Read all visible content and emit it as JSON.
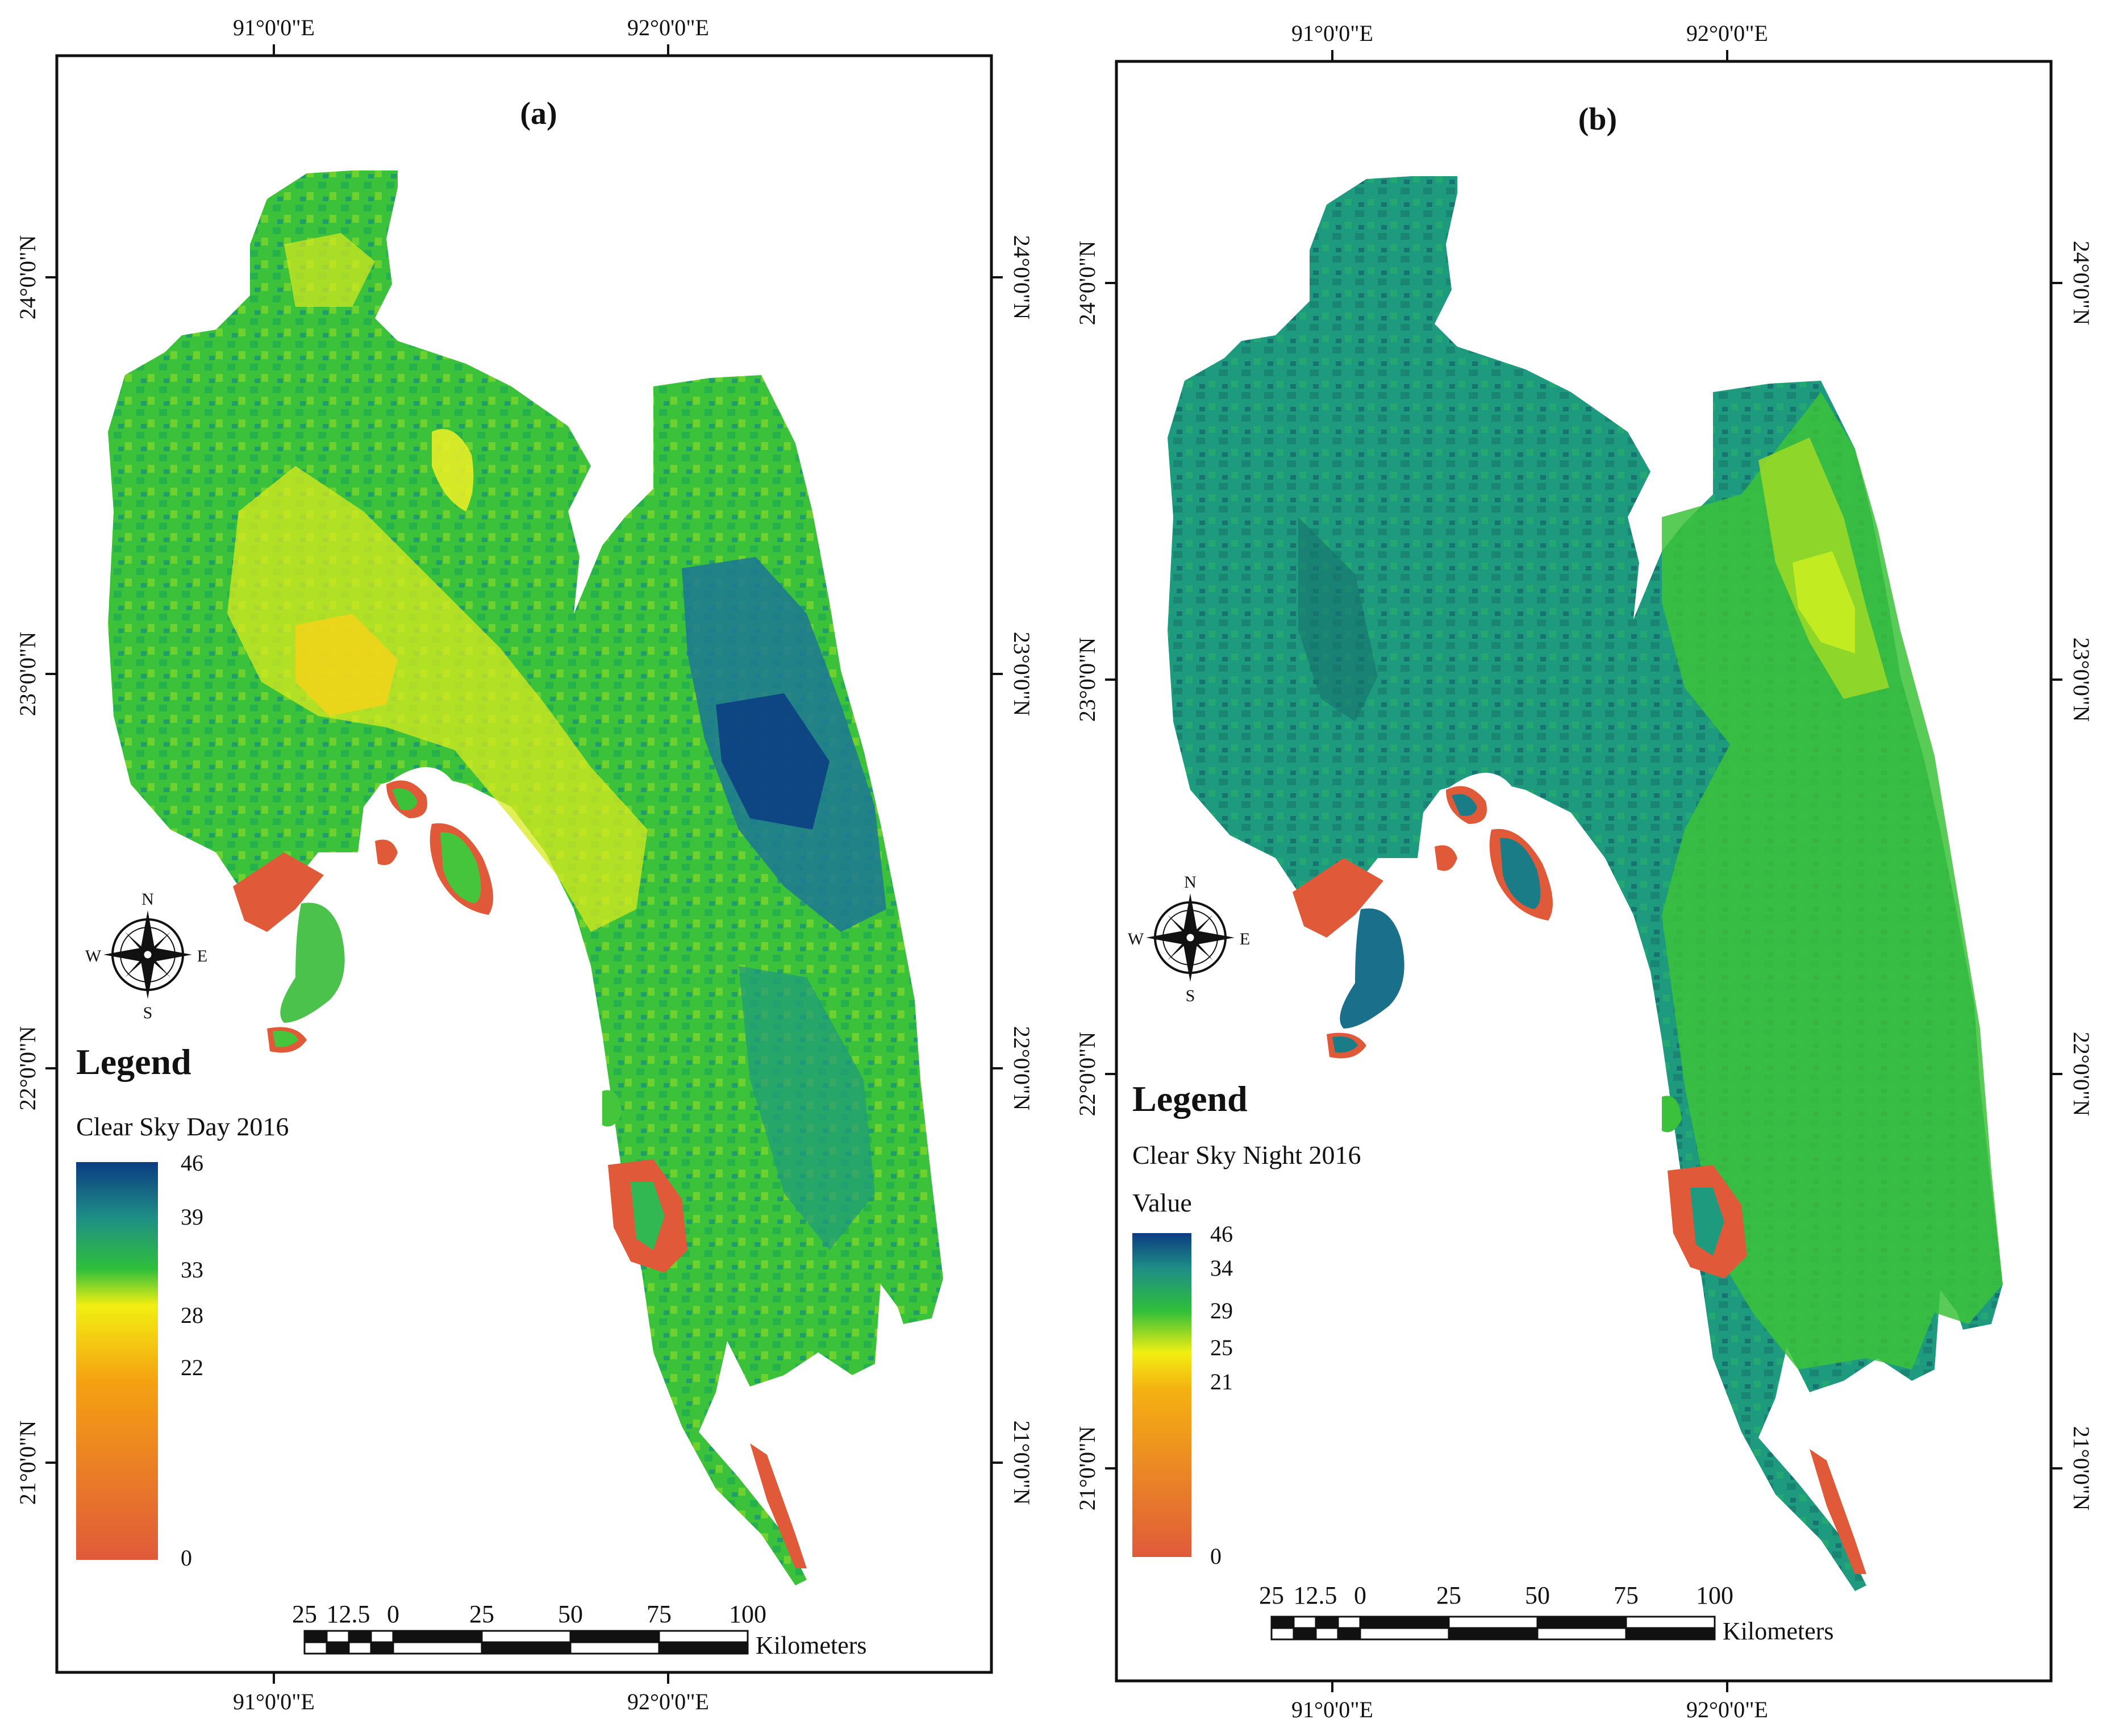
{
  "panels": [
    {
      "label": "(a)",
      "top_coords": [
        "91°0'0\"E",
        "92°0'0\"E"
      ],
      "bottom_coords": [
        "91°0'0\"E",
        "92°0'0\"E"
      ],
      "left_coords": [
        "24°0'0\"N",
        "23°0'0\"N",
        "22°0'0\"N",
        "21°0'0\"N"
      ],
      "right_coords": [
        "24°0'0\"N",
        "23°0'0\"N",
        "22°0'0\"N",
        "21°0'0\"N"
      ],
      "legend": {
        "title": "Legend",
        "subtitle": "Clear Sky Day 2016",
        "value_label": "",
        "ticks": [
          "46",
          "39",
          "33",
          "28",
          "22",
          "0"
        ]
      },
      "compass": {
        "n": "N",
        "s": "S",
        "e": "E",
        "w": "W"
      },
      "scalebar": {
        "labels": [
          "25",
          "12.5",
          "0",
          "25",
          "50",
          "75",
          "100"
        ],
        "unit": "Kilometers"
      }
    },
    {
      "label": "(b)",
      "top_coords": [
        "91°0'0\"E",
        "92°0'0\"E"
      ],
      "bottom_coords": [
        "91°0'0\"E",
        "92°0'0\"E"
      ],
      "left_coords": [
        "24°0'0\"N",
        "23°0'0\"N",
        "22°0'0\"N",
        "21°0'0\"N"
      ],
      "right_coords": [
        "24°0'0\"N",
        "23°0'0\"N",
        "22°0'0\"N",
        "21°0'0\"N"
      ],
      "legend": {
        "title": "Legend",
        "subtitle": "Clear Sky Night 2016",
        "value_label": "Value",
        "ticks": [
          "46",
          "34",
          "29",
          "25",
          "21",
          "0"
        ]
      },
      "compass": {
        "n": "N",
        "s": "S",
        "e": "E",
        "w": "W"
      },
      "scalebar": {
        "labels": [
          "25",
          "12.5",
          "0",
          "25",
          "50",
          "75",
          "100"
        ],
        "unit": "Kilometers"
      }
    }
  ],
  "colors": {
    "dark_blue": "#0b3c82",
    "teal": "#1f8e86",
    "green": "#2fbf3a",
    "lime": "#b7e31a",
    "yellow": "#f2ef12",
    "orange": "#f5a211",
    "red": "#e05a3a",
    "frame": "#111111"
  }
}
